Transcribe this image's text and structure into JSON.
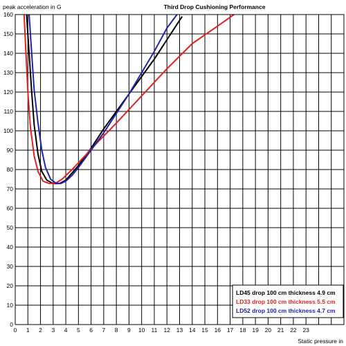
{
  "chart_data": {
    "type": "line",
    "title": "Third Drop Cushioning Performance",
    "ylabel": "peak acceleration in G",
    "xlabel": "Static pressure in",
    "xlim": [
      0,
      26
    ],
    "ylim": [
      0,
      160
    ],
    "xticks": [
      "0",
      "1",
      "2",
      "3",
      "4",
      "5",
      "6",
      "7",
      "8",
      "9",
      "10",
      "11",
      "12",
      "13",
      "14",
      "15",
      "16",
      "17",
      "18",
      "19",
      "20",
      "21",
      "22",
      "23"
    ],
    "yticks": [
      "0",
      "10",
      "20",
      "30",
      "40",
      "50",
      "60",
      "70",
      "80",
      "90",
      "100",
      "110",
      "120",
      "130",
      "140",
      "150",
      "160"
    ],
    "grid": true,
    "legend_position": "bottom-right",
    "series": [
      {
        "name": "LD45 drop 100 cm thickness 4.9 cm",
        "color": "#000000",
        "x": [
          0.9,
          1.1,
          1.3,
          1.5,
          1.8,
          2.1,
          2.5,
          3.0,
          3.5,
          4.0,
          5.0,
          6.0,
          7.0,
          8.0,
          9.0,
          10.0,
          11.0,
          12.0,
          13.0,
          13.2
        ],
        "y": [
          160,
          140,
          120,
          103,
          88,
          79,
          74.5,
          72.8,
          72.8,
          74.5,
          82,
          91,
          101,
          110,
          119,
          128,
          137,
          147,
          157,
          159
        ]
      },
      {
        "name": "LD33 drop 100 cm thickness 5.5 cm",
        "color": "#dd2222",
        "x": [
          0.7,
          0.85,
          1.0,
          1.2,
          1.5,
          1.8,
          2.2,
          2.7,
          3.2,
          3.7,
          4.5,
          5.5,
          6.5,
          8.0,
          10.0,
          12.0,
          14.0,
          16.0,
          17.3
        ],
        "y": [
          160,
          140,
          120,
          102,
          87,
          79,
          74,
          72.8,
          73,
          75,
          80,
          87,
          94,
          104,
          118,
          132,
          145,
          154,
          160
        ]
      },
      {
        "name": "LD52 drop 100 cm thickness 4.7 cm",
        "color": "#2222aa",
        "x": [
          1.1,
          1.3,
          1.5,
          1.8,
          2.1,
          2.4,
          2.8,
          3.2,
          3.6,
          4.0,
          4.5,
          5.0,
          6.0,
          7.0,
          8.0,
          9.0,
          10.0,
          11.0,
          12.0,
          12.8
        ],
        "y": [
          160,
          140,
          121,
          104,
          90,
          81,
          75,
          73,
          72.8,
          74,
          77,
          81,
          90,
          99,
          109,
          119,
          130,
          141,
          153,
          160
        ]
      }
    ]
  }
}
